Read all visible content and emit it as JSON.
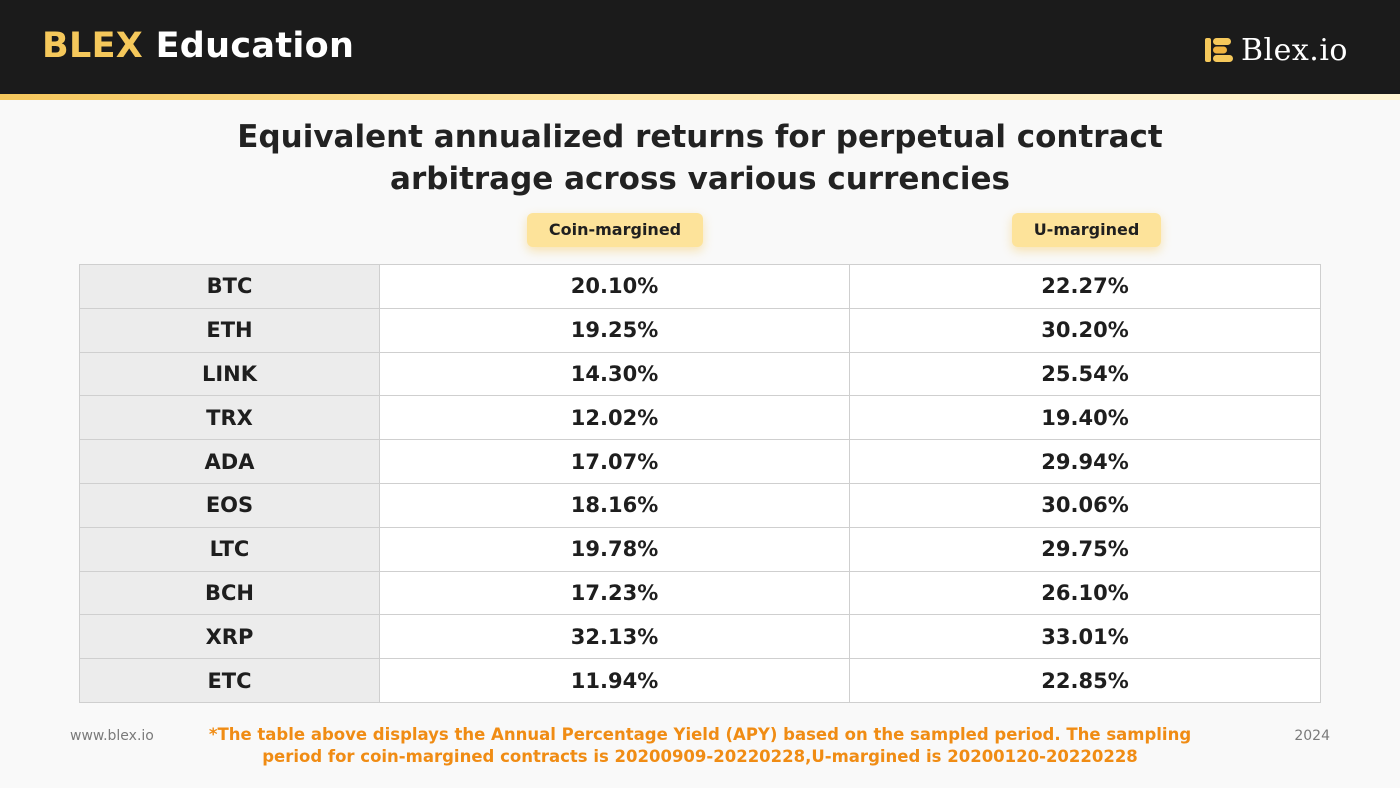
{
  "header": {
    "brand_accent": "BLEX",
    "brand_rest": "Education",
    "logo_text": "Blex.io",
    "logo_icon": "blex-logo-icon",
    "colors": {
      "bar": "#1b1b1b",
      "accent": "#f5c85b"
    }
  },
  "title": {
    "line1": "Equivalent annualized returns for perpetual contract",
    "line2": "arbitrage across various currencies"
  },
  "columns": {
    "coin": "Coin-margined",
    "u": "U-margined"
  },
  "rows": [
    {
      "currency": "BTC",
      "coin": "20.10%",
      "u": "22.27%"
    },
    {
      "currency": "ETH",
      "coin": "19.25%",
      "u": "30.20%"
    },
    {
      "currency": "LINK",
      "coin": "14.30%",
      "u": "25.54%"
    },
    {
      "currency": "TRX",
      "coin": "12.02%",
      "u": "19.40%"
    },
    {
      "currency": "ADA",
      "coin": "17.07%",
      "u": "29.94%"
    },
    {
      "currency": "EOS",
      "coin": "18.16%",
      "u": "30.06%"
    },
    {
      "currency": "LTC",
      "coin": "19.78%",
      "u": "29.75%"
    },
    {
      "currency": "BCH",
      "coin": "17.23%",
      "u": "26.10%"
    },
    {
      "currency": "XRP",
      "coin": "32.13%",
      "u": "33.01%"
    },
    {
      "currency": "ETC",
      "coin": "11.94%",
      "u": "22.85%"
    }
  ],
  "footer": {
    "website": "www.blex.io",
    "year": "2024",
    "note_line1": "*The table above displays the Annual Percentage Yield (APY) based on the sampled period. The sampling",
    "note_line2": "period for coin-margined contracts is 20200909-20220228,U-margined is 20200120-20220228",
    "note_color": "#f08c14"
  }
}
